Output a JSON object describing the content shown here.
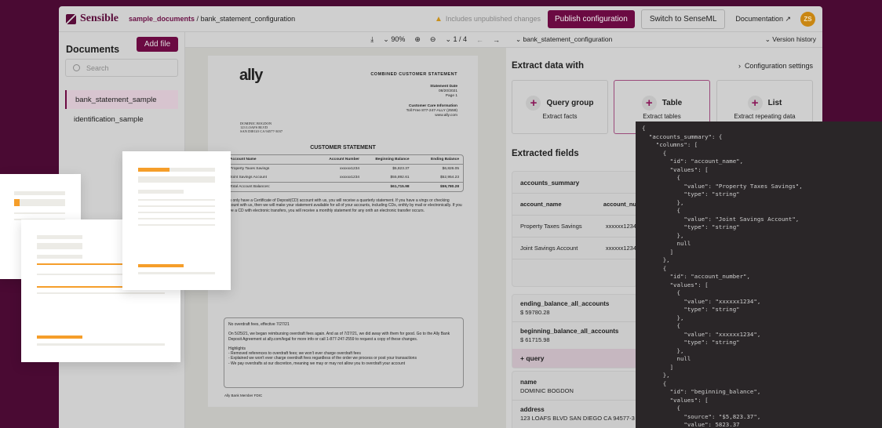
{
  "header": {
    "brand": "Sensible",
    "breadcrumb_parent": "sample_documents",
    "breadcrumb_sep": " / ",
    "breadcrumb_current": "bank_statement_configuration",
    "warning": "Includes unpublished changes",
    "publish": "Publish configuration",
    "switch": "Switch to SenseML",
    "docs": "Documentation ↗",
    "avatar": "ZS"
  },
  "sidebar": {
    "title": "Documents",
    "add_file": "Add file",
    "search_placeholder": "Search",
    "files": [
      {
        "label": "bank_statement_sample",
        "selected": true
      },
      {
        "label": "identification_sample",
        "selected": false
      }
    ]
  },
  "viewer": {
    "zoom": "90%",
    "page": "1 / 4",
    "doc": {
      "logo": "ally",
      "title": "COMBINED CUSTOMER STATEMENT",
      "date_label": "Statement Date",
      "date": "08/20/2021",
      "page": "Page 1",
      "care_label": "Customer Care Information",
      "tollfree": "Toll Free 877-247-ALLY (2559)",
      "site": "www.ally.com",
      "addr1": "DOMINIC BOGDON",
      "addr2": "123 LOAFS BLVD",
      "addr3": "SAN DIEGO CA  94577-3037",
      "section": "CUSTOMER STATEMENT",
      "table_header": [
        "Account Name",
        "Account Number",
        "Beginning Balance",
        "Ending Balance"
      ],
      "rows": [
        [
          "Property Taxes Savings",
          "xxxxxx1234",
          "$5,823.37",
          "$6,826.05"
        ],
        [
          "Joint Savings Account",
          "xxxxxx1234",
          "$55,892.61",
          "$52,954.23"
        ],
        [
          "Total Account Balances:",
          "",
          "$61,715.98",
          "$59,780.28"
        ]
      ],
      "para": "you only have a Certificate of Deposit(CD) account with us, you will receive a quarterly statement.  If you have a vings or checking account with us, then we will make your statement available for all of your accounts, including CDs, onthly by mail or electronically.  If you have a CD with electronic transfers, you will receive a monthly statement for any onth an electronic transfer occurs.",
      "notice_title": "No overdraft fees, effective 7/27/21",
      "notice_body": "On 5/25/21, we began reimbursing overdraft fees again. And as of 7/27/21, we did away with them for good. Go to the Ally Bank Deposit Agreement at ally.com/legal for more info or call 1-877-247-2559 to request a copy of these changes.",
      "highlights": "Highlights",
      "bullets": [
        "- Removed references to overdraft fees; we won't ever charge overdraft fees",
        "- Explained we won't ever charge overdraft fees regardless of the order we process or post your transactions",
        "- We pay overdrafts at our discretion, meaning we may or may not allow you to overdraft your account"
      ],
      "footer": "Ally Bank Member FDIC"
    }
  },
  "right": {
    "config": "bank_statement_configuration",
    "version": "Version history",
    "extract_title": "Extract data with",
    "config_settings": "Configuration settings",
    "cards": [
      {
        "title": "Query group",
        "sub": "Extract facts"
      },
      {
        "title": "Table",
        "sub": "Extract tables"
      },
      {
        "title": "List",
        "sub": "Extract repeating data"
      }
    ],
    "extracted_title": "Extracted fields",
    "table_name": "accounts_summary",
    "cols": [
      "account_name",
      "account_nu"
    ],
    "rows": [
      [
        "Property Taxes Savings",
        "xxxxxx1234"
      ],
      [
        "Joint Savings Account",
        "xxxxxx1234"
      ]
    ],
    "fields1": [
      {
        "k": "ending_balance_all_accounts",
        "v": "$ 59780.28"
      },
      {
        "k": "beginning_balance_all_accounts",
        "v": "$ 61715.98"
      }
    ],
    "add_query": "+ query",
    "fields2": [
      {
        "k": "name",
        "v": "DOMINIC BOGDON"
      },
      {
        "k": "address",
        "v": "123 LOAFS BLVD SAN DIEGO CA 94577-3"
      }
    ]
  },
  "code": "{\n  \"accounts_summary\": {\n    \"columns\": [\n      {\n        \"id\": \"account_name\",\n        \"values\": [\n          {\n            \"value\": \"Property Taxes Savings\",\n            \"type\": \"string\"\n          },\n          {\n            \"value\": \"Joint Savings Account\",\n            \"type\": \"string\"\n          },\n          null\n        ]\n      },\n      {\n        \"id\": \"account_number\",\n        \"values\": [\n          {\n            \"value\": \"xxxxxx1234\",\n            \"type\": \"string\"\n          },\n          {\n            \"value\": \"xxxxxx1234\",\n            \"type\": \"string\"\n          },\n          null\n        ]\n      },\n      {\n        \"id\": \"beginning_balance\",\n        \"values\": [\n          {\n            \"source\": \"$5,823.37\",\n            \"value\": 5823.37"
}
